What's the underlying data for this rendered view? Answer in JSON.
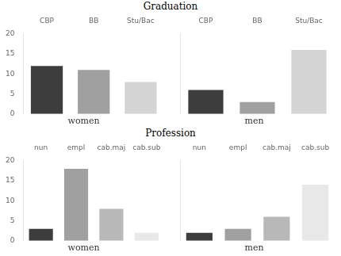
{
  "chart_data": [
    {
      "type": "bar",
      "title": "Graduation",
      "xlabel": "women",
      "categories": [
        "CBP",
        "BB",
        "Stu/Bac"
      ],
      "values": [
        12,
        11,
        8
      ],
      "colors": [
        "#3d3d3d",
        "#a0a0a0",
        "#d4d4d4"
      ],
      "ylim": [
        0,
        20
      ],
      "yticks": [
        0,
        5,
        10,
        15,
        20
      ],
      "grid": false
    },
    {
      "type": "bar",
      "xlabel": "men",
      "categories": [
        "CBP",
        "BB",
        "Stu/Bac"
      ],
      "values": [
        6,
        3,
        16
      ],
      "colors": [
        "#3d3d3d",
        "#a0a0a0",
        "#d4d4d4"
      ],
      "ylim": [
        0,
        20
      ],
      "yticks": [
        0,
        5,
        10,
        15,
        20
      ],
      "grid": false,
      "tick_labels": "x"
    },
    {
      "type": "bar",
      "title": "Profession",
      "xlabel": "women",
      "categories": [
        "nun",
        "empl",
        "cab.maj",
        "cab.sub"
      ],
      "values": [
        3,
        18,
        8,
        2
      ],
      "colors": [
        "#3d3d3d",
        "#a0a0a0",
        "#b8b8b8",
        "#e8e8e8"
      ],
      "ylim": [
        0,
        20
      ],
      "yticks": [
        0,
        5,
        10,
        15,
        20
      ],
      "grid": false
    },
    {
      "type": "bar",
      "xlabel": "men",
      "categories": [
        "nun",
        "empl",
        "cab.maj",
        "cab.sub"
      ],
      "values": [
        2,
        3,
        6,
        14
      ],
      "colors": [
        "#3d3d3d",
        "#a0a0a0",
        "#b8b8b8",
        "#e8e8e8"
      ],
      "ylim": [
        0,
        20
      ],
      "yticks": [
        0,
        5,
        10,
        15,
        20
      ],
      "grid": false,
      "tick_labels": "x"
    }
  ]
}
